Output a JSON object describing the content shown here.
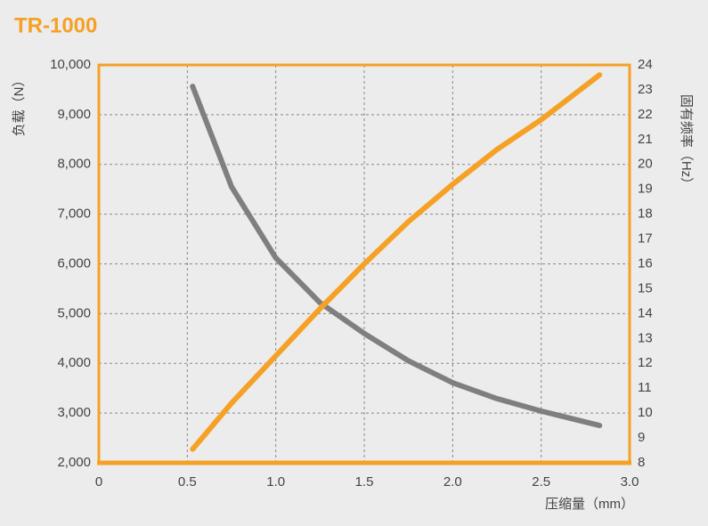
{
  "chart_data": {
    "type": "line",
    "title": "TR-1000",
    "x_label": "压缩量（mm）",
    "y_label": "负载（N）",
    "y2_label": "固有频率（Hz）",
    "x": [
      0.53,
      0.75,
      1.0,
      1.25,
      1.5,
      1.75,
      2.0,
      2.25,
      2.5,
      2.83
    ],
    "series": [
      {
        "color": "#7f7f7f",
        "values": [
          9570,
          7550,
          6120,
          5220,
          4600,
          4050,
          3610,
          3290,
          3040,
          2750
        ]
      },
      {
        "color": "#f5a126",
        "axis": "y2",
        "values": [
          8.55,
          10.4,
          12.3,
          14.2,
          16.0,
          17.7,
          19.2,
          20.6,
          21.8,
          23.6
        ]
      }
    ],
    "xlim": [
      0,
      3
    ],
    "xticks": [
      0,
      0.5,
      {
        "value": 1,
        "label": "1.0"
      },
      1.5,
      {
        "value": 2,
        "label": "2.0"
      },
      2.5,
      {
        "value": 3,
        "label": "3.0"
      }
    ],
    "ylim": [
      2000,
      10000
    ],
    "yticks": [
      {
        "value": 2000,
        "label": "2,000"
      },
      {
        "value": 3000,
        "label": "3,000"
      },
      {
        "value": 4000,
        "label": "4,000"
      },
      {
        "value": 5000,
        "label": "5,000"
      },
      {
        "value": 6000,
        "label": "6,000"
      },
      {
        "value": 7000,
        "label": "7,000"
      },
      {
        "value": 8000,
        "label": "8,000"
      },
      {
        "value": 9000,
        "label": "9,000"
      },
      {
        "value": 10000,
        "label": "10,000"
      }
    ],
    "y2lim": [
      8,
      24
    ],
    "y2ticks": [
      8,
      9,
      10,
      11,
      12,
      13,
      14,
      15,
      16,
      17,
      18,
      19,
      20,
      21,
      22,
      23,
      24
    ],
    "grid": true,
    "frame_color": "#f5a126"
  }
}
